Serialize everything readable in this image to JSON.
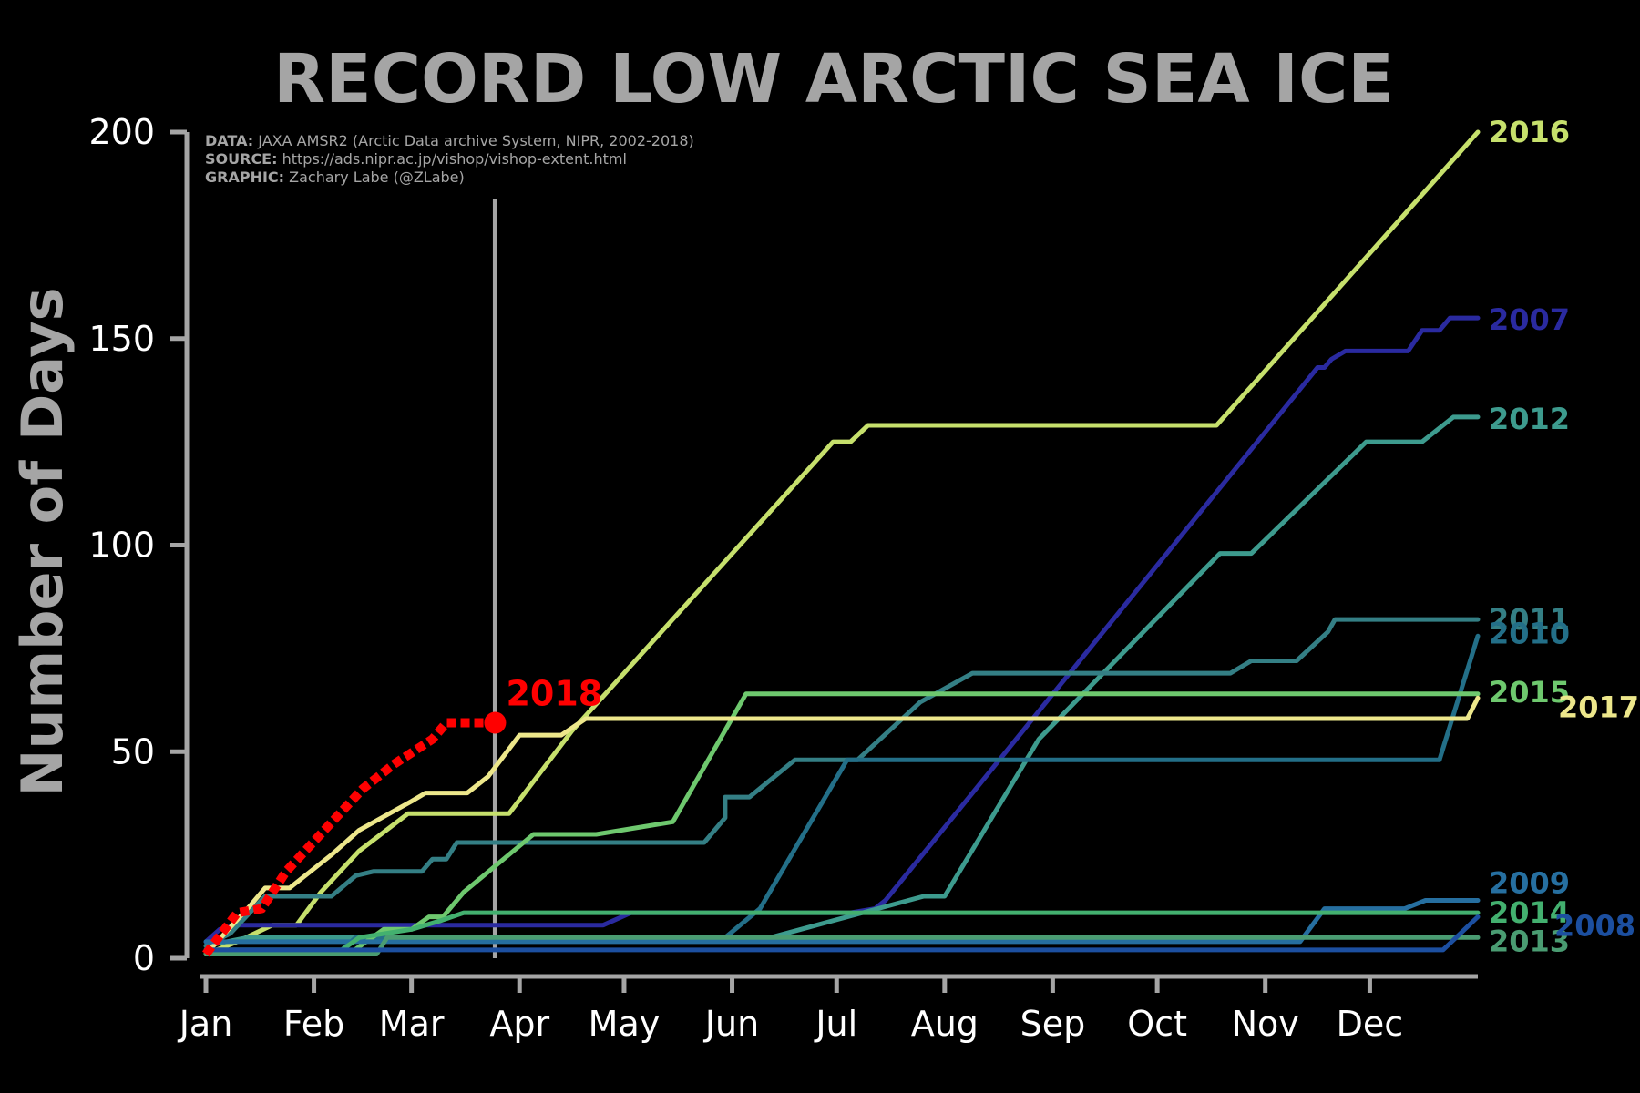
{
  "chart_data": {
    "type": "line",
    "title": "RECORD LOW ARCTIC SEA ICE",
    "ylabel": "Number of Days",
    "xlabel": "",
    "ylim": [
      0,
      200
    ],
    "yticks": [
      0,
      50,
      100,
      150,
      200
    ],
    "xlim": [
      1,
      366
    ],
    "x_unit": "day of year",
    "months": [
      "Jan",
      "Feb",
      "Mar",
      "Apr",
      "May",
      "Jun",
      "Jul",
      "Aug",
      "Sep",
      "Oct",
      "Nov",
      "Dec"
    ],
    "month_start_days": [
      1,
      32,
      60,
      91,
      121,
      152,
      182,
      213,
      244,
      274,
      305,
      335
    ],
    "current_date_marker_day": 84,
    "source_lines": [
      {
        "key": "DATA:",
        "text": " JAXA AMSR2 (Arctic Data archive System, NIPR, 2002-2018)"
      },
      {
        "key": "SOURCE:",
        "text": " https://ads.nipr.ac.jp/vishop/vishop-extent.html"
      },
      {
        "key": "GRAPHIC:",
        "text": " Zachary Labe (@ZLabe)"
      }
    ],
    "series": [
      {
        "name": "2016",
        "color": "#c6e06c",
        "dashed": false,
        "points": [
          [
            1,
            1
          ],
          [
            10,
            4
          ],
          [
            20,
            8
          ],
          [
            27,
            8
          ],
          [
            34,
            16
          ],
          [
            45,
            26
          ],
          [
            59,
            35
          ],
          [
            88,
            35
          ],
          [
            106,
            55
          ],
          [
            181,
            125
          ],
          [
            186,
            125
          ],
          [
            191,
            129
          ],
          [
            291,
            129
          ],
          [
            366,
            200
          ]
        ]
      },
      {
        "name": "2007",
        "color": "#2a2aa0",
        "dashed": false,
        "points": [
          [
            1,
            4
          ],
          [
            5,
            7
          ],
          [
            10,
            8
          ],
          [
            115,
            8
          ],
          [
            123,
            11
          ],
          [
            186,
            11
          ],
          [
            193,
            12
          ],
          [
            196,
            14
          ],
          [
            320,
            143
          ],
          [
            322,
            143
          ],
          [
            324,
            145
          ],
          [
            328,
            147
          ],
          [
            346,
            147
          ],
          [
            350,
            152
          ],
          [
            355,
            152
          ],
          [
            358,
            155
          ],
          [
            366,
            155
          ]
        ]
      },
      {
        "name": "2012",
        "color": "#3d9b8e",
        "dashed": false,
        "points": [
          [
            1,
            3
          ],
          [
            13,
            5
          ],
          [
            163,
            5
          ],
          [
            207,
            15
          ],
          [
            213,
            15
          ],
          [
            240,
            53
          ],
          [
            292,
            98
          ],
          [
            301,
            98
          ],
          [
            334,
            125
          ],
          [
            350,
            125
          ],
          [
            359,
            131
          ],
          [
            366,
            131
          ]
        ]
      },
      {
        "name": "2011",
        "color": "#347f85",
        "dashed": false,
        "points": [
          [
            1,
            3
          ],
          [
            8,
            6
          ],
          [
            18,
            15
          ],
          [
            37,
            15
          ],
          [
            44,
            20
          ],
          [
            49,
            21
          ],
          [
            63,
            21
          ],
          [
            66,
            24
          ],
          [
            70,
            24
          ],
          [
            73,
            28
          ],
          [
            98,
            28
          ],
          [
            144,
            28
          ],
          [
            150,
            34
          ],
          [
            150,
            39
          ],
          [
            157,
            39
          ],
          [
            170,
            48
          ],
          [
            188,
            48
          ],
          [
            206,
            62
          ],
          [
            221,
            69
          ],
          [
            295,
            69
          ],
          [
            301,
            72
          ],
          [
            314,
            72
          ],
          [
            323,
            79
          ],
          [
            325,
            82
          ],
          [
            366,
            82
          ]
        ]
      },
      {
        "name": "2010",
        "color": "#236f88",
        "dashed": false,
        "points": [
          [
            1,
            2
          ],
          [
            40,
            2
          ],
          [
            44,
            5
          ],
          [
            150,
            5
          ],
          [
            160,
            12
          ],
          [
            185,
            48
          ],
          [
            205,
            48
          ],
          [
            345,
            48
          ],
          [
            355,
            48
          ],
          [
            366,
            78
          ]
        ]
      },
      {
        "name": "2015",
        "color": "#6ec86e",
        "dashed": false,
        "points": [
          [
            1,
            1
          ],
          [
            42,
            1
          ],
          [
            52,
            7
          ],
          [
            60,
            7
          ],
          [
            65,
            10
          ],
          [
            69,
            10
          ],
          [
            75,
            16
          ],
          [
            95,
            30
          ],
          [
            113,
            30
          ],
          [
            135,
            33
          ],
          [
            156,
            64
          ],
          [
            366,
            64
          ]
        ]
      },
      {
        "name": "2017",
        "color": "#ede78b",
        "dashed": false,
        "points": [
          [
            1,
            1
          ],
          [
            14,
            13
          ],
          [
            18,
            17
          ],
          [
            25,
            17
          ],
          [
            37,
            25
          ],
          [
            45,
            31
          ],
          [
            60,
            38
          ],
          [
            64,
            40
          ],
          [
            76,
            40
          ],
          [
            82,
            44
          ],
          [
            91,
            54
          ],
          [
            103,
            54
          ],
          [
            110,
            58
          ],
          [
            363,
            58
          ],
          [
            366,
            63
          ]
        ]
      },
      {
        "name": "2009",
        "color": "#266fa0",
        "dashed": false,
        "points": [
          [
            1,
            4
          ],
          [
            315,
            4
          ],
          [
            322,
            12
          ],
          [
            345,
            12
          ],
          [
            351,
            14
          ],
          [
            366,
            14
          ]
        ]
      },
      {
        "name": "2014",
        "color": "#43b06f",
        "dashed": false,
        "points": [
          [
            1,
            2
          ],
          [
            40,
            2
          ],
          [
            45,
            5
          ],
          [
            60,
            7
          ],
          [
            68,
            9
          ],
          [
            75,
            11
          ],
          [
            366,
            11
          ]
        ]
      },
      {
        "name": "2013",
        "color": "#4a9c72",
        "dashed": false,
        "points": [
          [
            1,
            1
          ],
          [
            50,
            1
          ],
          [
            53,
            5
          ],
          [
            366,
            5
          ]
        ]
      },
      {
        "name": "2008",
        "color": "#1c4fa0",
        "dashed": false,
        "points": [
          [
            1,
            2
          ],
          [
            356,
            2
          ],
          [
            366,
            10
          ]
        ]
      },
      {
        "name": "2018",
        "color": "#ff0000",
        "dashed": true,
        "points": [
          [
            1,
            1
          ],
          [
            10,
            11
          ],
          [
            17,
            12
          ],
          [
            24,
            21
          ],
          [
            35,
            31
          ],
          [
            46,
            41
          ],
          [
            55,
            47
          ],
          [
            66,
            53
          ],
          [
            70,
            57
          ],
          [
            84,
            57
          ]
        ]
      }
    ]
  }
}
